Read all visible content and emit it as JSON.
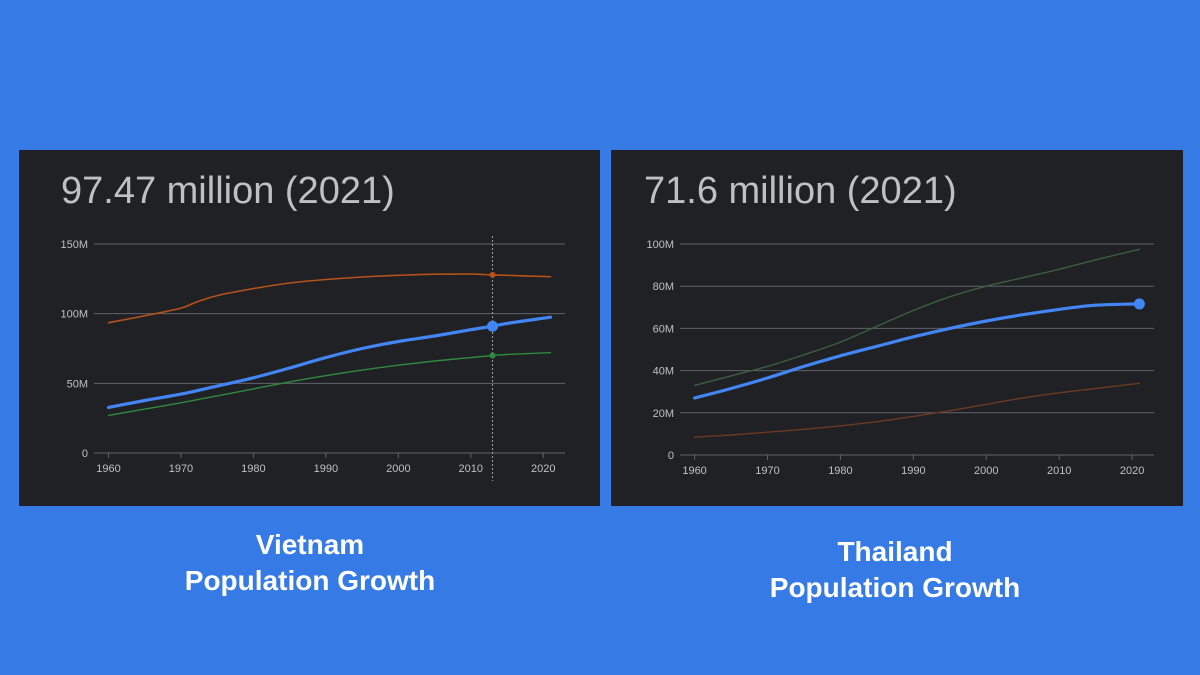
{
  "colors": {
    "page_background": "#367ae6",
    "panel_background": "#202124",
    "gridline": "#5f6368",
    "axis_text": "#bdc1c6",
    "headline_text": "#bdc1c6",
    "caption_text": "#ffffff",
    "primary_series": "#4285f4",
    "orange_series": "#b5521b",
    "green_series": "#2f8a3e",
    "thailand_green_series": "#3a5f3e",
    "thailand_orange_series": "#6b3a22"
  },
  "vietnam": {
    "headline": "97.47 million (2021)",
    "caption_line1": "Vietnam",
    "caption_line2": "Population Growth"
  },
  "thailand": {
    "headline": "71.6 million (2021)",
    "caption_line1": "Thailand",
    "caption_line2": "Population Growth"
  },
  "chart_data": [
    {
      "type": "line",
      "title": "97.47 million (2021)",
      "xlabel": "",
      "ylabel": "",
      "xlim": [
        1958,
        2023
      ],
      "ylim": [
        0,
        150
      ],
      "x_ticks": [
        1960,
        1970,
        1980,
        1990,
        2000,
        2010,
        2020
      ],
      "y_ticks": [
        0,
        50,
        100,
        150
      ],
      "y_tick_labels": [
        "0",
        "50M",
        "100M",
        "150M"
      ],
      "grid": true,
      "legend": "none",
      "hover_marker_x": 2013,
      "series": [
        {
          "color": "orange_series",
          "stroke_width": 1.6,
          "primary": false,
          "x": [
            1960,
            1965,
            1970,
            1972,
            1975,
            1980,
            1985,
            1990,
            1995,
            2000,
            2005,
            2010,
            2013,
            2015,
            2021
          ],
          "y": [
            93.5,
            98.5,
            104,
            108,
            113,
            118,
            122,
            124.5,
            126.3,
            127.5,
            128.3,
            128.4,
            127.8,
            127.5,
            126.5
          ],
          "marker_x": 2013,
          "marker_y": 127.8
        },
        {
          "color": "green_series",
          "stroke_width": 1.4,
          "primary": false,
          "x": [
            1960,
            1965,
            1970,
            1975,
            1980,
            1985,
            1990,
            1995,
            2000,
            2005,
            2010,
            2013,
            2015,
            2021
          ],
          "y": [
            27,
            31.5,
            36,
            41,
            46,
            51,
            55.5,
            59.5,
            63,
            66,
            68.5,
            70,
            70.7,
            72
          ],
          "marker_x": 2013,
          "marker_y": 70
        },
        {
          "color": "primary_series",
          "stroke_width": 3.2,
          "primary": true,
          "x": [
            1960,
            1965,
            1970,
            1975,
            1980,
            1985,
            1990,
            1995,
            2000,
            2005,
            2010,
            2013,
            2015,
            2021
          ],
          "y": [
            32.7,
            37.7,
            42.3,
            48,
            54,
            61,
            68.5,
            75,
            80,
            84,
            88.5,
            91,
            93,
            97.47
          ],
          "marker_x": 2013,
          "marker_y": 91
        }
      ]
    },
    {
      "type": "line",
      "title": "71.6 million (2021)",
      "xlabel": "",
      "ylabel": "",
      "xlim": [
        1958,
        2023
      ],
      "ylim": [
        0,
        100
      ],
      "x_ticks": [
        1960,
        1970,
        1980,
        1990,
        2000,
        2010,
        2020
      ],
      "y_ticks": [
        0,
        20,
        40,
        60,
        80,
        100
      ],
      "y_tick_labels": [
        "0",
        "20M",
        "40M",
        "60M",
        "80M",
        "100M"
      ],
      "grid": true,
      "legend": "none",
      "series": [
        {
          "color": "thailand_green_series",
          "stroke_width": 1.4,
          "primary": false,
          "x": [
            1960,
            1965,
            1970,
            1975,
            1980,
            1985,
            1990,
            1995,
            2000,
            2005,
            2010,
            2015,
            2021
          ],
          "y": [
            33,
            37.5,
            42,
            47.5,
            53.5,
            61,
            68.5,
            75,
            80,
            84,
            88,
            92.5,
            97.5
          ]
        },
        {
          "color": "thailand_orange_series",
          "stroke_width": 1.4,
          "primary": false,
          "x": [
            1960,
            1965,
            1970,
            1975,
            1980,
            1985,
            1990,
            1995,
            2000,
            2005,
            2010,
            2015,
            2021
          ],
          "y": [
            8.5,
            9.5,
            10.8,
            12.2,
            13.8,
            15.8,
            18.3,
            21,
            24,
            27,
            29.5,
            31.5,
            34
          ]
        },
        {
          "color": "primary_series",
          "stroke_width": 3.2,
          "primary": true,
          "x": [
            1960,
            1965,
            1970,
            1975,
            1980,
            1985,
            1990,
            1995,
            2000,
            2005,
            2010,
            2015,
            2021
          ],
          "y": [
            27,
            31.5,
            36.5,
            42,
            47,
            51.5,
            56,
            60,
            63.5,
            66.5,
            69,
            71,
            71.6
          ],
          "marker_x": 2021,
          "marker_y": 71.6
        }
      ]
    }
  ]
}
